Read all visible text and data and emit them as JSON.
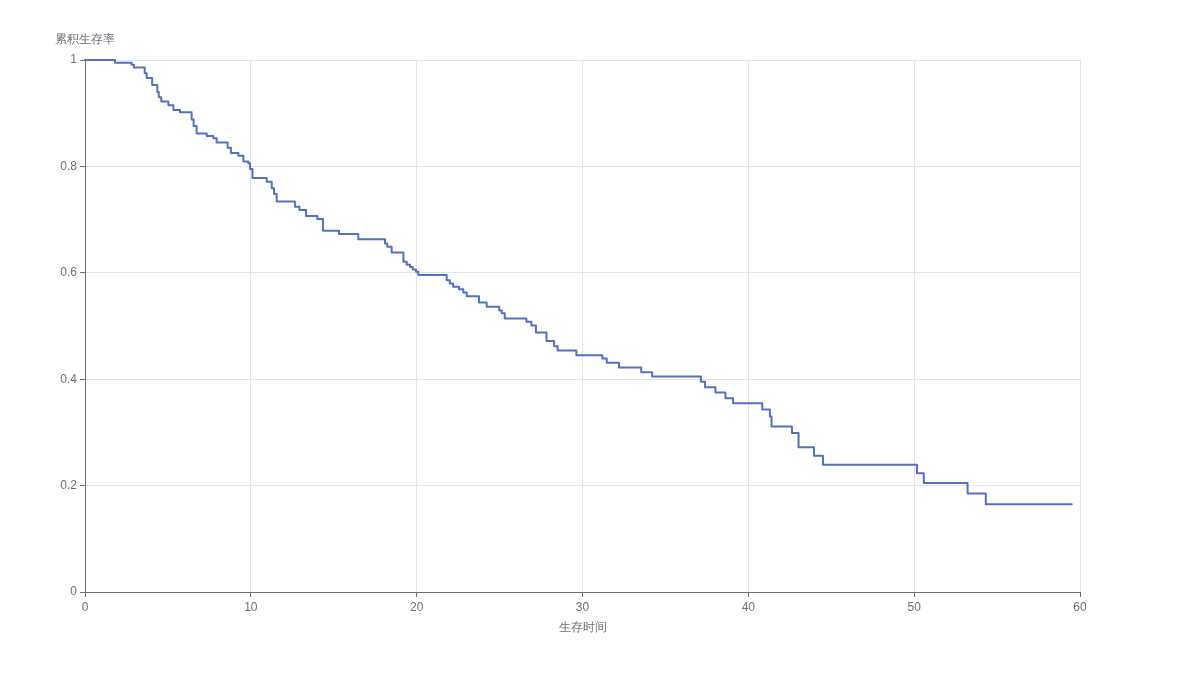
{
  "chart_data": {
    "type": "step",
    "xlabel": "生存时间",
    "ylabel": "累积生存率",
    "x": [
      0,
      1.81,
      2.81,
      2.95,
      3.6,
      3.72,
      4.05,
      4.36,
      4.45,
      4.6,
      5.03,
      5.33,
      5.73,
      6.43,
      6.55,
      6.73,
      7.34,
      7.74,
      7.94,
      8.6,
      8.8,
      9.25,
      9.55,
      9.85,
      9.95,
      10.1,
      10.96,
      11.26,
      11.4,
      11.56,
      12.66,
      12.93,
      13.33,
      14.01,
      14.35,
      15.32,
      16.48,
      18.09,
      18.23,
      18.49,
      19.2,
      19.4,
      19.6,
      19.76,
      19.96,
      20.1,
      21.81,
      22.0,
      22.2,
      22.55,
      22.81,
      23.02,
      23.76,
      24.22,
      24.98,
      25.13,
      25.31,
      26.62,
      26.92,
      27.19,
      27.83,
      28.29,
      28.5,
      29.63,
      31.2,
      31.46,
      32.2,
      33.54,
      34.2,
      37.14,
      37.39,
      38.02,
      38.62,
      39.08,
      40.84,
      41.3,
      41.4,
      42.63,
      43.03,
      43.96,
      44.5,
      50.17,
      50.58,
      53.22,
      54.32,
      59.5
    ],
    "values": [
      1,
      0.995,
      0.991,
      0.986,
      0.975,
      0.966,
      0.953,
      0.94,
      0.93,
      0.922,
      0.915,
      0.906,
      0.902,
      0.888,
      0.876,
      0.862,
      0.857,
      0.853,
      0.845,
      0.835,
      0.825,
      0.82,
      0.809,
      0.806,
      0.795,
      0.778,
      0.771,
      0.759,
      0.748,
      0.734,
      0.724,
      0.718,
      0.707,
      0.701,
      0.679,
      0.673,
      0.663,
      0.655,
      0.649,
      0.638,
      0.621,
      0.615,
      0.611,
      0.606,
      0.602,
      0.596,
      0.586,
      0.58,
      0.574,
      0.569,
      0.563,
      0.556,
      0.544,
      0.536,
      0.529,
      0.524,
      0.514,
      0.508,
      0.501,
      0.488,
      0.472,
      0.462,
      0.454,
      0.445,
      0.439,
      0.431,
      0.422,
      0.413,
      0.405,
      0.395,
      0.385,
      0.375,
      0.364,
      0.355,
      0.343,
      0.33,
      0.311,
      0.299,
      0.272,
      0.256,
      0.239,
      0.223,
      0.205,
      0.185,
      0.165,
      0.165
    ],
    "color": "#5470c6",
    "xlim": [
      0,
      60
    ],
    "xticks": [
      0,
      10,
      20,
      30,
      40,
      50,
      60
    ],
    "ylim": [
      0,
      1
    ],
    "yticks": [
      0,
      0.2,
      0.4,
      0.6,
      0.8,
      1
    ],
    "grid": true,
    "marker": "none"
  }
}
